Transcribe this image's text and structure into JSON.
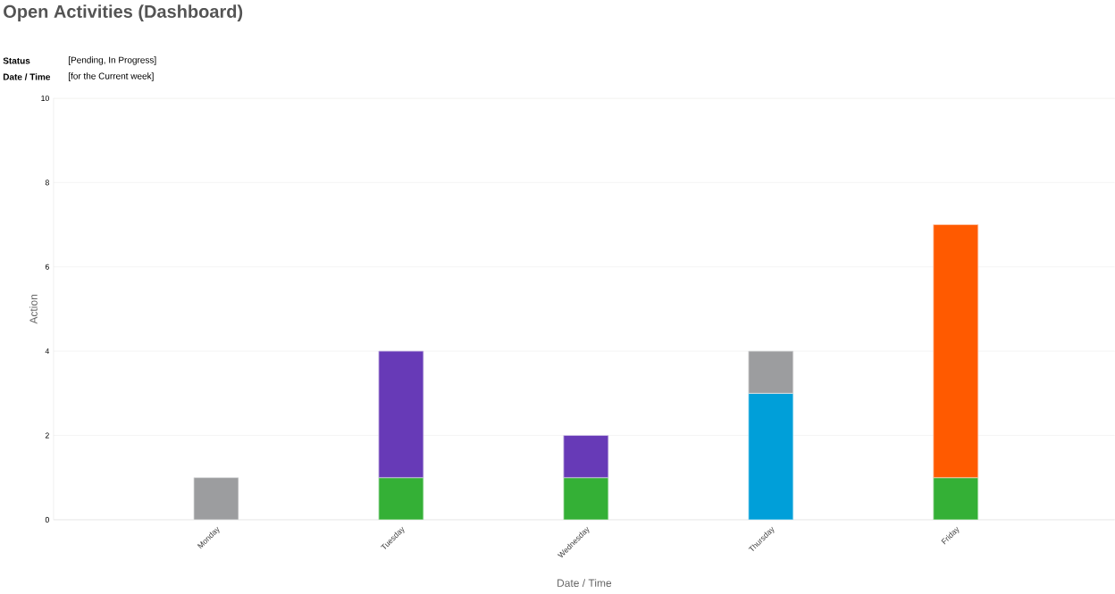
{
  "chart_data": {
    "type": "bar",
    "title": "Open Activities (Dashboard)",
    "annotations": [
      "Status",
      "[Pending, In Progress]",
      "Date / Time",
      "[for the Current week]"
    ],
    "xlabel": "Date / Time",
    "ylabel": "Action",
    "categories": [
      "Monday",
      "Tuesday",
      "Wednesday",
      "Thursday",
      "Friday"
    ],
    "stacked": true,
    "series": [
      {
        "color": "#34b036",
        "values": [
          null,
          1,
          1,
          null,
          1
        ]
      },
      {
        "color": "#673ab7",
        "values": [
          null,
          3,
          1,
          null,
          null
        ]
      },
      {
        "color": "#009fd9",
        "values": [
          null,
          null,
          null,
          3,
          null
        ]
      },
      {
        "color": "#ff5a00",
        "values": [
          null,
          null,
          null,
          null,
          6
        ]
      },
      {
        "color": "#9c9d9f",
        "values": [
          1,
          null,
          null,
          1,
          null
        ]
      }
    ],
    "ylim": [
      0,
      10
    ],
    "yticks": [
      0,
      2,
      4,
      6,
      8,
      10
    ],
    "grid": "y"
  }
}
